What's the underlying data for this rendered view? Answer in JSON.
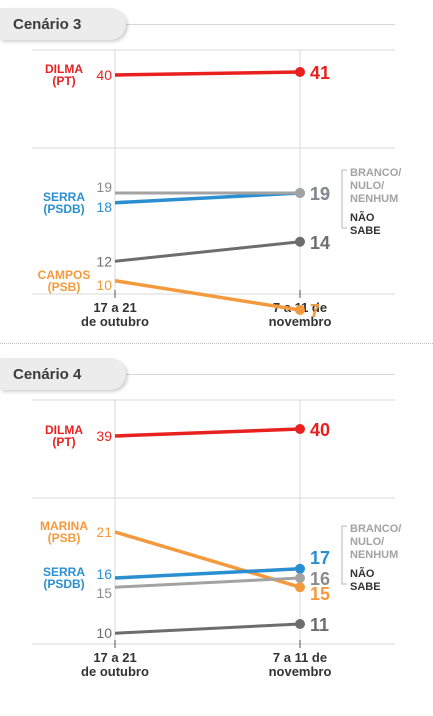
{
  "chart_data": [
    {
      "type": "line",
      "title": "Cenário 3",
      "categories": [
        "17 a 21\nde outubro",
        "7 a 11 de\nnovembro"
      ],
      "series": [
        {
          "name": "DILMA\n(PT)",
          "values": [
            40,
            41
          ],
          "color": "#e8211f"
        },
        {
          "name": "SERRA\n(PSDB)",
          "values": [
            18,
            19
          ],
          "color": "#2a8fd1"
        },
        {
          "name": "CAMPOS\n(PSB)",
          "values": [
            10,
            7
          ],
          "color": "#f59a3c"
        },
        {
          "name": "BRANCO/\nNULO/\nNENHUM",
          "values": [
            19,
            19
          ],
          "color": "#a3a3a3"
        },
        {
          "name": "NÃO\nSABE",
          "values": [
            12,
            14
          ],
          "color": "#6d6d6d"
        }
      ],
      "grid": true
    },
    {
      "type": "line",
      "title": "Cenário 4",
      "categories": [
        "17 a 21\nde outubro",
        "7 a 11 de\nnovembro"
      ],
      "series": [
        {
          "name": "DILMA\n(PT)",
          "values": [
            39,
            40
          ],
          "color": "#e8211f"
        },
        {
          "name": "MARINA\n(PSB)",
          "values": [
            21,
            15
          ],
          "color": "#f59a3c"
        },
        {
          "name": "SERRA\n(PSDB)",
          "values": [
            16,
            17
          ],
          "color": "#2a8fd1"
        },
        {
          "name": "BRANCO/\nNULO/\nNENHUM",
          "values": [
            15,
            16
          ],
          "color": "#a3a3a3"
        },
        {
          "name": "NÃO\nSABE",
          "values": [
            10,
            11
          ],
          "color": "#6d6d6d"
        }
      ],
      "grid": true
    }
  ]
}
